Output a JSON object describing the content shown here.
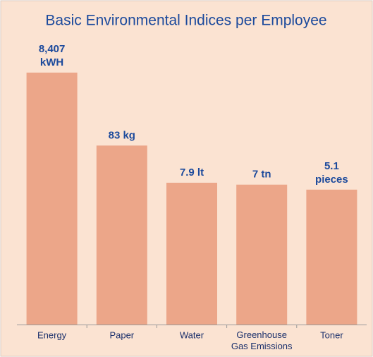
{
  "chart_data": {
    "type": "bar",
    "title": "Basic Environmental Indices per Employee",
    "categories": [
      "Energy",
      "Paper",
      "Water",
      "Greenhouse\nGas Emissions",
      "Toner"
    ],
    "values": [
      8407,
      83,
      7.9,
      7,
      5.1
    ],
    "value_labels": [
      "8,407\nkWH",
      "83 kg",
      "7.9 lt",
      "7 tn",
      "5.1\npieces"
    ],
    "color": "#eca689",
    "log_scale": true,
    "ylim": [
      0.001,
      10000
    ]
  }
}
